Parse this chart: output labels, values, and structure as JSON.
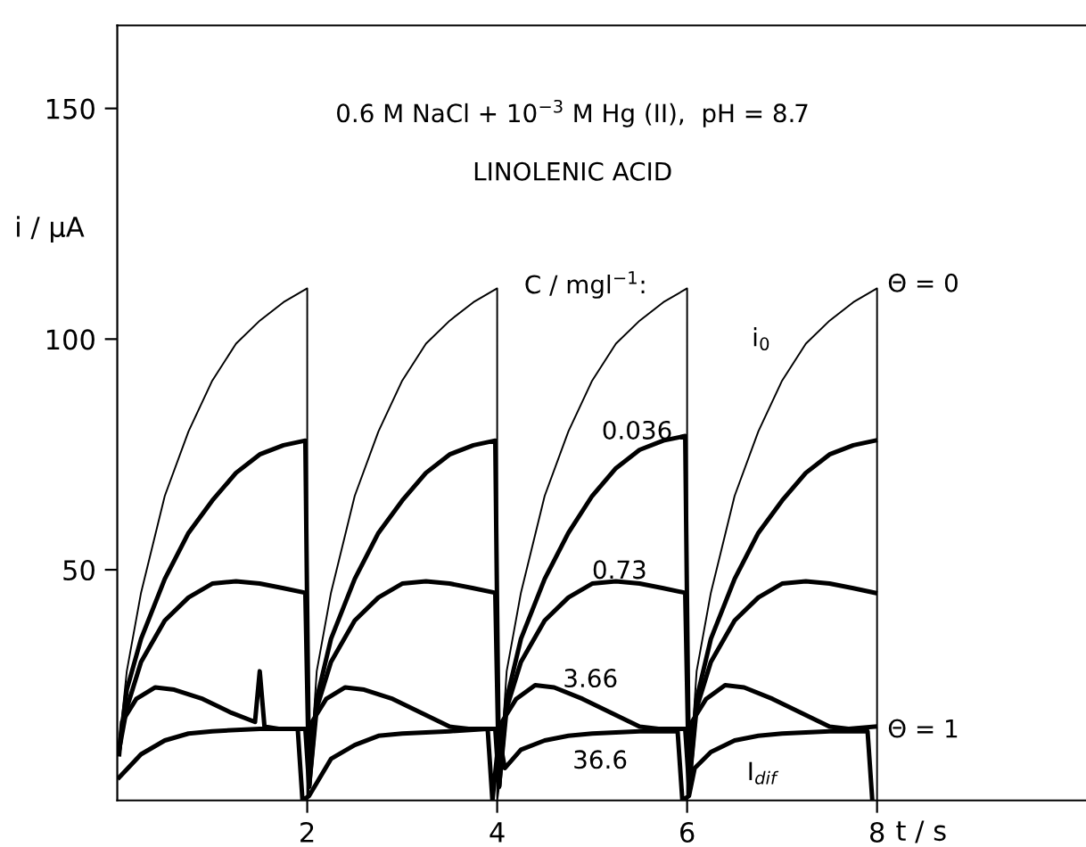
{
  "chart_data": {
    "type": "line",
    "title": "0.6 M NaCl + 10$^{−3}$ M Hg (II),  pH = 8.7",
    "subtitle": "LINOLENIC ACID",
    "xlabel": "t / s",
    "ylabel": "i / µA",
    "xlim": [
      0,
      10.2
    ],
    "ylim": [
      0,
      168
    ],
    "xticks": [
      2,
      4,
      6,
      8
    ],
    "yticks": [
      50,
      100,
      150
    ],
    "grid": false,
    "legend": false,
    "marker": "none",
    "line_style": "solid",
    "series": [
      {
        "color": "#000000",
        "x": [
          0.02,
          0.1,
          0.25,
          0.5,
          0.75,
          1.0,
          1.25,
          1.5,
          1.75,
          2.0,
          2.0,
          2.02,
          2.1,
          2.25,
          2.5,
          2.75,
          3.0,
          3.25,
          3.5,
          3.75,
          4.0,
          4.0,
          4.02,
          4.1,
          4.25,
          4.5,
          4.75,
          5.0,
          5.25,
          5.5,
          5.75,
          6.0,
          6.0,
          6.02,
          6.1,
          6.25,
          6.5,
          6.75,
          7.0,
          7.25,
          7.5,
          7.75,
          8.0,
          8.0
        ],
        "values": [
          12,
          28,
          45,
          66,
          80,
          91,
          99,
          104,
          108,
          111,
          0,
          3,
          28,
          45,
          66,
          80,
          91,
          99,
          104,
          108,
          111,
          0,
          3,
          28,
          45,
          66,
          80,
          91,
          99,
          104,
          108,
          111,
          0,
          3,
          28,
          45,
          66,
          80,
          91,
          99,
          104,
          108,
          111,
          0
        ]
      },
      {
        "name": "0.036",
        "color": "#000000",
        "x": [
          0.02,
          0.1,
          0.25,
          0.5,
          0.75,
          1.0,
          1.25,
          1.5,
          1.75,
          1.98,
          2.02,
          2.1,
          2.25,
          2.5,
          2.75,
          3.0,
          3.25,
          3.5,
          3.75,
          3.98,
          4.02,
          4.1,
          4.25,
          4.5,
          4.75,
          5.0,
          5.25,
          5.5,
          5.75,
          5.98,
          6.02,
          6.1,
          6.25,
          6.5,
          6.75,
          7.0,
          7.25,
          7.5,
          7.75,
          7.98
        ],
        "values": [
          11,
          24,
          35,
          48,
          58,
          65,
          71,
          75,
          77,
          78,
          3,
          22,
          35,
          48,
          58,
          65,
          71,
          75,
          77,
          78,
          3,
          22,
          35,
          48,
          58,
          66,
          72,
          76,
          78,
          79,
          3,
          22,
          35,
          48,
          58,
          65,
          71,
          75,
          77,
          78
        ]
      },
      {
        "name": "0.73",
        "color": "#000000",
        "x": [
          0.02,
          0.1,
          0.25,
          0.5,
          0.75,
          1.0,
          1.25,
          1.5,
          1.75,
          1.98,
          2.02,
          2.1,
          2.25,
          2.5,
          2.75,
          3.0,
          3.25,
          3.5,
          3.75,
          3.98,
          4.02,
          4.1,
          4.25,
          4.5,
          4.75,
          5.0,
          5.25,
          5.5,
          5.75,
          5.98,
          6.02,
          6.1,
          6.25,
          6.5,
          6.75,
          7.0,
          7.25,
          7.5,
          7.75,
          7.98
        ],
        "values": [
          11,
          20,
          30,
          39,
          44,
          47,
          47.5,
          47,
          46,
          45,
          3,
          20,
          30,
          39,
          44,
          47,
          47.5,
          47,
          46,
          45,
          3,
          20,
          30,
          39,
          44,
          47,
          47.5,
          47,
          46,
          45,
          3,
          20,
          30,
          39,
          44,
          47,
          47.5,
          47,
          46,
          45
        ]
      },
      {
        "name": "3.66",
        "color": "#000000",
        "x": [
          0.02,
          0.05,
          0.2,
          0.4,
          0.6,
          0.9,
          1.2,
          1.45,
          1.5,
          1.55,
          1.7,
          1.98,
          2.02,
          2.05,
          2.2,
          2.4,
          2.6,
          2.9,
          3.2,
          3.5,
          3.7,
          3.98,
          4.02,
          4.05,
          4.2,
          4.4,
          4.6,
          4.9,
          5.2,
          5.5,
          5.7,
          5.98,
          6.02,
          6.05,
          6.2,
          6.4,
          6.6,
          6.9,
          7.2,
          7.5,
          7.7,
          7.98
        ],
        "values": [
          10,
          17,
          22,
          24.5,
          24,
          22,
          19,
          17,
          28,
          16,
          15.5,
          15.5,
          3,
          17,
          22,
          24.5,
          24,
          22,
          19,
          16,
          15.5,
          15.5,
          3,
          17,
          22,
          25,
          24.5,
          22,
          19,
          16,
          15.5,
          15.5,
          3,
          17,
          22,
          25,
          24.5,
          22,
          19,
          16,
          15.5,
          16
        ]
      },
      {
        "name": "36.6",
        "color": "#000000",
        "x": [
          0.02,
          0.25,
          0.5,
          0.75,
          1.0,
          1.5,
          1.9,
          1.95,
          2.02,
          2.25,
          2.5,
          2.75,
          3.0,
          3.5,
          3.9,
          3.95,
          4.02,
          4.08,
          4.25,
          4.5,
          4.75,
          5.0,
          5.5,
          5.9,
          5.95,
          6.02,
          6.08,
          6.25,
          6.5,
          6.75,
          7.0,
          7.5,
          7.9,
          7.95
        ],
        "values": [
          5,
          10,
          13,
          14.5,
          15,
          15.5,
          15.5,
          0,
          1,
          9,
          12,
          14,
          14.5,
          15,
          15.5,
          0,
          14,
          7,
          11,
          13,
          14,
          14.5,
          15,
          15,
          0,
          1,
          7,
          10.5,
          13,
          14,
          14.5,
          15,
          15,
          0
        ]
      }
    ],
    "annotations": [
      "C / mgl$^{−1}$:",
      "i$_{0}$",
      "Θ = 0",
      "Θ = 1",
      "I$_{dif}$"
    ]
  }
}
